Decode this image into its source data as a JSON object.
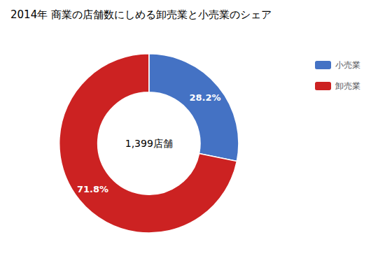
{
  "chart_data": {
    "type": "pie",
    "title": "2014年 商業の店舗数にしめる卸売業と小売業のシェア",
    "categories": [
      "小売業",
      "卸売業"
    ],
    "values": [
      28.2,
      71.8
    ],
    "value_labels": [
      "28.2%",
      "71.8%"
    ],
    "colors": [
      "#4472C4",
      "#CC2222"
    ],
    "annotations": [
      "1,399店舗"
    ],
    "data_labels": true,
    "legend": "upper right"
  }
}
